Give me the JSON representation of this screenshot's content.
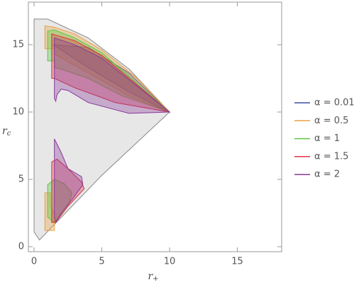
{
  "chart_data": {
    "type": "region",
    "xlabel": {
      "base": "r",
      "sub": "+"
    },
    "ylabel": {
      "base": "r",
      "sub": "c"
    },
    "xlim": [
      -0.42,
      18.27
    ],
    "ylim": [
      -0.37,
      18.16
    ],
    "xticks": [
      0,
      5,
      10,
      15
    ],
    "yticks": [
      0,
      5,
      10,
      15
    ],
    "background_region": {
      "color": "#888888",
      "x": [
        0,
        1,
        4,
        7,
        10,
        5,
        0.4,
        0
      ],
      "y": [
        16.9,
        16.9,
        15.5,
        13.2,
        10,
        5.3,
        0.5,
        1.1
      ]
    },
    "series": [
      {
        "name": "α = 0.01",
        "color": "#3f4fa6",
        "regions": [
          {
            "x": [
              1.4,
              4,
              7,
              10,
              7,
              4
            ],
            "y": [
              15,
              14.8,
              12.9,
              10,
              11.5,
              13.3
            ]
          }
        ]
      },
      {
        "name": "α = 0.5",
        "color": "#e8a040",
        "regions": [
          {
            "x": [
              0.8,
              1.5,
              3,
              5,
              7.5,
              10,
              7,
              4,
              1.5,
              1.5,
              0.8
            ],
            "y": [
              16.4,
              16.3,
              15.8,
              14.6,
              12.6,
              10,
              11.2,
              12.9,
              14.3,
              14.7,
              14.7
            ]
          },
          {
            "x": [
              0.8,
              1.2,
              1.2,
              1.5,
              1.5,
              0.8
            ],
            "y": [
              4,
              4,
              3,
              2.5,
              1.2,
              1.2
            ]
          }
        ]
      },
      {
        "name": "α = 1",
        "color": "#5cc83f",
        "regions": [
          {
            "x": [
              1,
              1.5,
              3,
              5,
              10,
              6.5,
              4,
              2,
              1.5,
              1.5,
              1
            ],
            "y": [
              16,
              16.1,
              15.5,
              14.4,
              10,
              11.2,
              12.5,
              13.2,
              13.3,
              13.8,
              13.8
            ]
          },
          {
            "x": [
              1,
              1.5,
              2.2,
              2.8,
              2.5,
              1.5,
              1
            ],
            "y": [
              4.6,
              5,
              4.7,
              4,
              3,
              1.8,
              2.2
            ]
          }
        ]
      },
      {
        "name": "α = 1.5",
        "color": "#e0303f",
        "regions": [
          {
            "x": [
              1.3,
              3,
              5,
              10,
              6,
              3,
              1.5,
              1.3
            ],
            "y": [
              15.8,
              15.3,
              14.2,
              10,
              10.7,
              11.8,
              12.5,
              12.5
            ]
          },
          {
            "x": [
              1.3,
              1.7,
              2.5,
              3.5,
              3.7,
              2.5,
              1.6,
              1.3
            ],
            "y": [
              6.3,
              6.5,
              5.8,
              4.8,
              4.3,
              3,
              1.8,
              1.8
            ]
          }
        ]
      },
      {
        "name": "α = 2",
        "color": "#8a3a9a",
        "regions": [
          {
            "x": [
              1.5,
              3,
              5,
              10,
              7,
              4,
              2.5,
              2,
              1.7,
              1.6,
              1.5
            ],
            "y": [
              15.5,
              15,
              14,
              10,
              9.9,
              10.7,
              11.6,
              11.7,
              11.3,
              10.8,
              11
            ]
          },
          {
            "x": [
              1.5,
              2,
              2.5,
              3.5,
              3.6,
              2.8,
              2,
              1.6,
              1.5
            ],
            "y": [
              8,
              7,
              5.8,
              5.2,
              4.6,
              3.5,
              2.5,
              1.8,
              2.2
            ]
          }
        ]
      }
    ]
  }
}
